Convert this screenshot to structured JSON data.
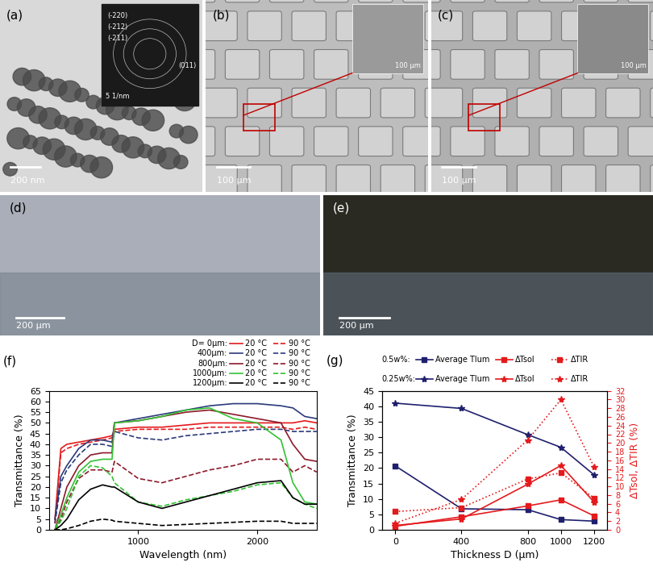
{
  "panels": [
    {
      "label": "(a)",
      "color": "#d9d9d9",
      "scale_bar": "200 nm",
      "inset": {
        "color": "#1a1a1a",
        "scale_bar": "5 1/nm",
        "indices": [
          "(-220)",
          "(-212)",
          "(-211)",
          "(011)"
        ]
      }
    },
    {
      "label": "(b)",
      "color": "#bdbdbd",
      "scale_bar": "100 μm",
      "inset": {
        "color": "#9a9a9a",
        "scale_bar": "100 μm"
      }
    },
    {
      "label": "(c)",
      "color": "#b0b0b0",
      "scale_bar": "100 μm",
      "inset": {
        "color": "#8a8a8a",
        "scale_bar": "100 μm"
      }
    },
    {
      "label": "(d)",
      "color": "#a9aeb8",
      "scale_bar": "200 μm"
    },
    {
      "label": "(e)",
      "color": "#2b2a22",
      "scale_bar": "200 μm"
    }
  ],
  "chart_data": [
    {
      "type": "line",
      "title": "(f)",
      "x_label": "Wavelength (nm)",
      "y_label": "Transmittance (%)",
      "x": [
        300,
        350,
        400,
        500,
        600,
        700,
        780,
        800,
        1000,
        1200,
        1400,
        1600,
        1800,
        2000,
        2200,
        2300,
        2400,
        2500
      ],
      "xlim": [
        250,
        2500
      ],
      "xticks": [
        1000,
        2000
      ],
      "ylim": [
        0,
        65
      ],
      "yticks": [
        0,
        5,
        10,
        15,
        20,
        25,
        30,
        35,
        40,
        45,
        50,
        55,
        60,
        65
      ],
      "legend": "upper right",
      "series": [
        {
          "group": "D= 0μm:",
          "name": "20 °C",
          "color": "#e41a1c",
          "line_style": "solid",
          "values": [
            5,
            38,
            40,
            41,
            42,
            43,
            44,
            47,
            48,
            48,
            49,
            50,
            50,
            50,
            50,
            50,
            51,
            50
          ]
        },
        {
          "group": "D= 0μm:",
          "name": "90 °C",
          "color": "#e41a1c",
          "line_style": "dashed",
          "values": [
            3,
            36,
            38,
            40,
            41,
            42,
            43,
            46,
            47,
            47,
            47,
            48,
            48,
            48,
            48,
            47,
            48,
            47
          ]
        },
        {
          "group": "400μm:",
          "name": "20 °C",
          "color": "#2b3a7a",
          "line_style": "solid",
          "values": [
            5,
            25,
            30,
            38,
            42,
            42,
            41,
            50,
            52,
            54,
            56,
            58,
            59,
            59,
            58,
            57,
            53,
            52
          ]
        },
        {
          "group": "400μm:",
          "name": "90 °C",
          "color": "#2b3a7a",
          "line_style": "dashed",
          "values": [
            3,
            22,
            28,
            35,
            40,
            40,
            39,
            46,
            43,
            42,
            44,
            45,
            46,
            47,
            47,
            46,
            46,
            46
          ]
        },
        {
          "group": "800μm:",
          "name": "20 °C",
          "color": "#8b1a2b",
          "line_style": "solid",
          "values": [
            0,
            10,
            20,
            30,
            35,
            36,
            36,
            50,
            51,
            53,
            55,
            56,
            54,
            52,
            50,
            40,
            33,
            32
          ]
        },
        {
          "group": "800μm:",
          "name": "90 °C",
          "color": "#8b1a2b",
          "line_style": "dashed",
          "values": [
            0,
            5,
            13,
            24,
            28,
            28,
            27,
            32,
            24,
            22,
            25,
            28,
            30,
            33,
            33,
            27,
            30,
            27
          ]
        },
        {
          "group": "1000μm:",
          "name": "20 °C",
          "color": "#33c233",
          "line_style": "solid",
          "values": [
            0,
            7,
            15,
            27,
            32,
            33,
            33,
            50,
            51,
            53,
            56,
            57,
            52,
            50,
            42,
            22,
            13,
            12
          ]
        },
        {
          "group": "1000μm:",
          "name": "90 °C",
          "color": "#33c233",
          "line_style": "dashed",
          "values": [
            0,
            4,
            10,
            25,
            30,
            29,
            25,
            22,
            13,
            11,
            14,
            16,
            18,
            21,
            22,
            15,
            12,
            10
          ]
        },
        {
          "group": "1200μm:",
          "name": "20 °C",
          "color": "#000000",
          "line_style": "solid",
          "values": [
            0,
            2,
            5,
            14,
            19,
            21,
            20,
            20,
            13,
            10,
            13,
            16,
            19,
            22,
            23,
            15,
            12,
            12
          ]
        },
        {
          "group": "1200μm:",
          "name": "90 °C",
          "color": "#000000",
          "line_style": "dashed",
          "values": [
            0,
            0,
            0.5,
            2,
            4,
            5,
            4.5,
            4,
            3,
            2,
            2.5,
            3,
            3.5,
            4,
            4,
            3,
            3,
            3
          ]
        }
      ]
    },
    {
      "type": "line",
      "title": "(g)",
      "x_label": "Thickness D (μm)",
      "y_label": "Transmittance (%)",
      "y2_label": "ΔTsol, ΔTIR (%)",
      "x": [
        0,
        400,
        800,
        1000,
        1200
      ],
      "xlim": [
        -80,
        1280
      ],
      "xticks": [
        0,
        400,
        800,
        1000,
        1200
      ],
      "ylim": [
        0,
        45
      ],
      "yticks": [
        0,
        5,
        10,
        15,
        20,
        25,
        30,
        35,
        40,
        45
      ],
      "y2lim": [
        0,
        32
      ],
      "y2ticks": [
        0,
        2,
        4,
        6,
        8,
        10,
        12,
        14,
        16,
        18,
        20,
        22,
        24,
        26,
        28,
        30,
        32
      ],
      "legend": "upper right",
      "series": [
        {
          "group": "0.5w%:",
          "name": "Average Tlum",
          "color": "#1f1f6e",
          "marker": "square",
          "line_style": "solid",
          "axis": "y",
          "values": [
            20.7,
            6.8,
            6.5,
            3.3,
            2.8
          ]
        },
        {
          "group": "0.5w%:",
          "name": "ΔTsol",
          "color": "#e41a1c",
          "marker": "square",
          "line_style": "solid",
          "axis": "y2",
          "values": [
            0.8,
            3.0,
            5.5,
            6.9,
            3.2
          ]
        },
        {
          "group": "0.5w%:",
          "name": "ΔTIR",
          "color": "#e41a1c",
          "marker": "square",
          "line_style": "dotted",
          "axis": "y2",
          "values": [
            4.2,
            5.1,
            11.7,
            13.1,
            7.3
          ]
        },
        {
          "group": "0.25w%:",
          "name": "Average Tlum",
          "color": "#1f1f6e",
          "marker": "star",
          "line_style": "solid",
          "axis": "y",
          "values": [
            41.0,
            39.3,
            30.8,
            26.7,
            17.8
          ]
        },
        {
          "group": "0.25w%:",
          "name": "ΔTsol",
          "color": "#e41a1c",
          "marker": "star",
          "line_style": "solid",
          "axis": "y2",
          "values": [
            1.0,
            2.5,
            10.5,
            14.8,
            6.4
          ]
        },
        {
          "group": "0.25w%:",
          "name": "ΔTIR",
          "color": "#e41a1c",
          "marker": "star",
          "line_style": "dotted",
          "axis": "y2",
          "values": [
            1.5,
            7.0,
            20.7,
            30.0,
            14.5
          ]
        }
      ]
    }
  ]
}
